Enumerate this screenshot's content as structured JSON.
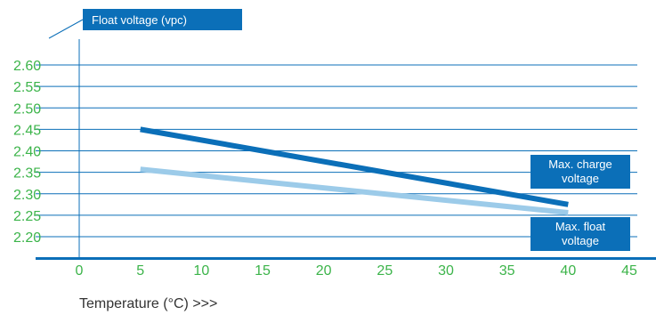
{
  "chart_data": {
    "type": "line",
    "ylabel": "Float voltage (vpc)",
    "xlabel": "Temperature (°C) >>>",
    "xlim": [
      0,
      45
    ],
    "ylim": [
      2.2,
      2.6
    ],
    "x_ticks": [
      "0",
      "5",
      "10",
      "15",
      "20",
      "25",
      "30",
      "35",
      "40",
      "45"
    ],
    "y_ticks": [
      "2.20",
      "2.25",
      "2.30",
      "2.35",
      "2.40",
      "2.45",
      "2.50",
      "2.55",
      "2.60"
    ],
    "grid": true,
    "series": [
      {
        "name": "Max. charge voltage",
        "label_lines": [
          "Max. charge",
          "voltage"
        ],
        "color": "#0b6fb8",
        "x": [
          5,
          40
        ],
        "y": [
          2.45,
          2.275
        ]
      },
      {
        "name": "Max. float voltage",
        "label_lines": [
          "Max. float",
          "voltage"
        ],
        "color": "#9ccbe9",
        "x": [
          5,
          40
        ],
        "y": [
          2.357,
          2.256
        ]
      }
    ]
  },
  "colors": {
    "axis": "#0b6fb8",
    "grid": "#0b6fb8",
    "tick_text": "#3cb44a",
    "label_box": "#0b6fb8"
  }
}
